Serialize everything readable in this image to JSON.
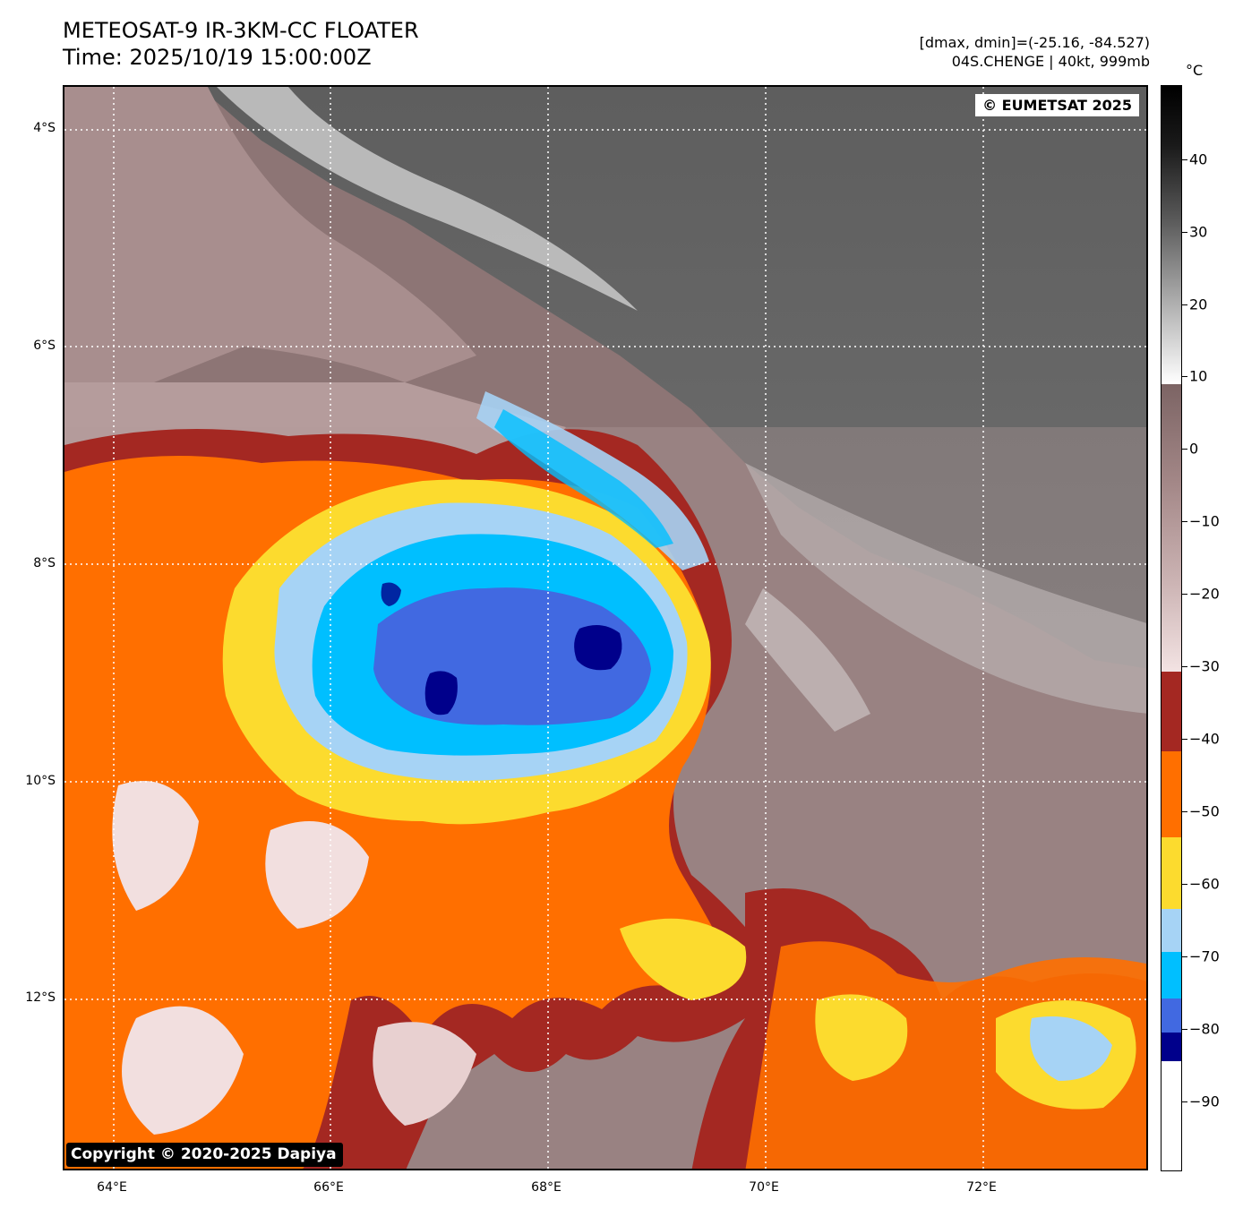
{
  "header": {
    "title_line1": "METEOSAT-9 IR-3KM-CC FLOATER",
    "title_line2": "Time: 2025/10/19 15:00:00Z",
    "stats_line": "[dmax, dmin]=(-25.16, -84.527)",
    "storm_line": "04S.CHENGE | 40kt, 999mb"
  },
  "map": {
    "watermark": "© EUMETSAT 2025",
    "credit": "Copyright © 2020-2025 Dapiya",
    "lat_labels": [
      "4°S",
      "6°S",
      "8°S",
      "10°S",
      "12°S"
    ],
    "lon_labels": [
      "64°E",
      "66°E",
      "68°E",
      "70°E",
      "72°E"
    ],
    "storm_center_lat": "9°S",
    "storm_center_lon": "68.5°E"
  },
  "colorbar": {
    "unit": "°C",
    "tick_labels": [
      "40",
      "30",
      "20",
      "10",
      "0",
      "−10",
      "−20",
      "−30",
      "−40",
      "−50",
      "−60",
      "−70",
      "−80",
      "−90"
    ],
    "range_c": [
      -100,
      50
    ],
    "bands": [
      {
        "from": -100,
        "to": -86,
        "color": "#ffffff"
      },
      {
        "from": -86,
        "to": -82,
        "color": "#00008b"
      },
      {
        "from": -82,
        "to": -78,
        "color": "#4169e1"
      },
      {
        "from": -78,
        "to": -72,
        "color": "#00bfff"
      },
      {
        "from": -72,
        "to": -66,
        "color": "#a6d3f5"
      },
      {
        "from": -66,
        "to": -59,
        "color": "#fcdb2e"
      },
      {
        "from": -59,
        "to": -48,
        "color": "#ff6f00"
      },
      {
        "from": -48,
        "to": -37,
        "color": "#a42822"
      },
      {
        "from": -37,
        "to": -29,
        "color": "#f7e8e8"
      },
      {
        "from": -29,
        "to": 9,
        "color": "gradient-pink-brown"
      },
      {
        "from": 9,
        "to": 50,
        "color": "gradient-white-black"
      }
    ]
  },
  "colors": {
    "cold_ring_1": "#00008b",
    "cold_ring_2": "#4169e1",
    "cold_ring_3": "#00bfff",
    "cold_ring_4": "#a6d3f5",
    "cold_ring_5": "#fcdb2e",
    "cold_ring_6": "#ff6f00",
    "cold_ring_7": "#a42822",
    "warm_cloud": "#f2dfdf",
    "clear_low": "#8d7575",
    "gray_high": "#6e6e6e"
  }
}
